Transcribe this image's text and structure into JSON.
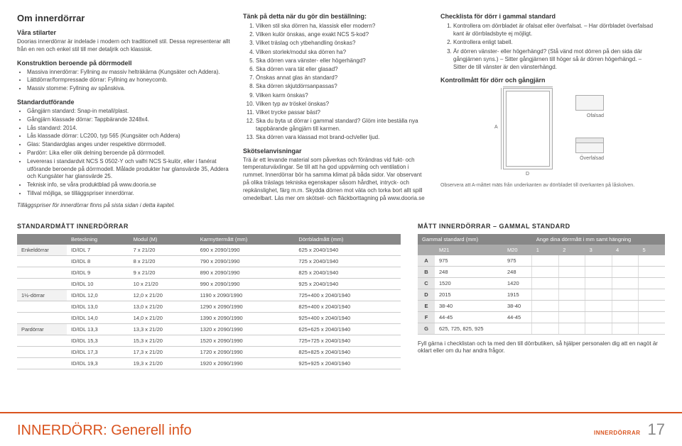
{
  "col1": {
    "heading": "Om innerdörrar",
    "stilarter_title": "Våra stilarter",
    "stilarter_text": "Doorias innerdörrar är indelade i modern och traditionell stil. Dessa representerar allt från en ren och enkel stil till mer detaljrik och klassisk.",
    "konstr_title": "Konstruktion beroende på dörrmodell",
    "konstr_items": [
      "Massiva innerdörrar: Fyllning av massiv helträkärna (Kungsäter och Addera).",
      "Lättdörrar/formpressade dörrar: Fyllning av honeycomb.",
      "Massiv stomme: Fyllning av spånskiva."
    ],
    "standard_title": "Standardutförande",
    "standard_items": [
      "Gångjärn standard: Snap-in metall/plast.",
      "Gångjärn klassade dörrar: Tappbärande 3248x4.",
      "Lås standard: 2014.",
      "Lås klassade dörrar: LC200, typ 565 (Kungsäter och Addera)",
      "Glas: Standardglas anges under respektive dörrmodell.",
      "Pardörr: Lika eller olik delning beroende på dörrmodell.",
      "Levereras i standardvit NCS S 0502-Y och valfri NCS S-kulör, eller i fanérat utförande beroende på dörrmodell. Målade produkter har glansvärde 35, Addera och Kungsäter har glansvärde 25.",
      "Teknisk info, se våra produktblad på www.dooria.se",
      "Tillval möjliga, se tilläggspriser innerdörrar."
    ],
    "tillaggs": "Tilläggspriser för innerdörrar finns på sista sidan i detta kapitel."
  },
  "col2": {
    "heading": "Tänk på detta när du gör din beställning:",
    "items": [
      "Vilken stil ska dörren ha, klassisk eller modern?",
      "Vilken kulör önskas, ange exakt NCS S-kod?",
      "Vilket träslag och ytbehandling önskas?",
      "Vilken storlek/modul ska dörren ha?",
      "Ska dörren vara vänster- eller högerhängd?",
      "Ska dörren vara tät eller glasad?",
      "Önskas annat glas än standard?",
      "Ska dörren skjutdörrsanpassas?",
      "Vilken karm önskas?",
      "Vilken typ av tröskel önskas?",
      "Vilket trycke passar bäst?",
      "Ska du byta ut dörrar i gammal standard? Glöm inte beställa nya tappbärande gångjärn till karmen.",
      "Ska dörren vara klassad mot brand-och/eller ljud."
    ],
    "skotsel_title": "Skötselanvisningar",
    "skotsel_text": "Trä är ett levande material som påverkas och förändras vid fukt- och temperaturväxlingar. Se till att ha god uppvärming och ventilation i rummet. Innerdörrar bör ha samma klimat på båda sidor. Var observant på olika träslags tekniska egenskaper såsom hårdhet, intryck- och repkänslighet, färg m.m. Skydda dörren mot väta och torka bort allt spill omedelbart. Läs mer om skötsel- och fläckborttagning på www.dooria.se"
  },
  "col3": {
    "heading": "Checklista för dörr i gammal standard",
    "items": [
      "Kontrollera om dörrbladet är ofalsat eller överfalsat. – Har dörrbladet överfalsad kant är dörrbladsbyte ej möjligt.",
      "Kontrollera enligt tabell.",
      "Är dörren vänster- eller högerhängd? (Stå vänd mot dörren på den sida där gångjärnen syns.) – Sitter gångjärnen till höger så är dörren högerhängd. – Sitter de till vänster är den vänsterhängd."
    ],
    "kontroll_title": "Kontrollmått för dörr och gångjärn",
    "diag_labels": {
      "ofalsad": "Ofalsad",
      "overfalsad": "Överfalsad"
    },
    "caption": "Observera att A-måttet mäts från underkanten av dörrbladet till överkanten på låskolven.",
    "fillnote": "Fyll gärna i checklistan och ta med den till dörrbutiken, så hjälper personalen dig att en nagöt är oklart eller om du har andra frågor."
  },
  "table1": {
    "title": "STANDARDMÅTT INNERDÖRRAR",
    "headers": [
      "",
      "Beteckning",
      "Modul (M)",
      "Karmyttermått (mm)",
      "Dörrbladmått (mm)"
    ],
    "rows": [
      [
        "Enkeldörrar",
        "ID/IDL 7",
        "7 x 21/20",
        "690 x 2090/1990",
        "625 x 2040/1940"
      ],
      [
        "",
        "ID/IDL 8",
        "8 x 21/20",
        "790 x 2090/1990",
        "725 x 2040/1940"
      ],
      [
        "",
        "ID/IDL 9",
        "9 x 21/20",
        "890 x 2090/1990",
        "825 x 2040/1940"
      ],
      [
        "",
        "ID/IDL 10",
        "10 x 21/20",
        "990 x 2090/1990",
        "925 x 2040/1940"
      ],
      [
        "1½-dörrar",
        "ID/IDL 12,0",
        "12,0 x 21/20",
        "1190 x 2090/1990",
        "725+400 x 2040/1940"
      ],
      [
        "",
        "ID/IDL 13,0",
        "13,0 x 21/20",
        "1290 x 2090/1990",
        "825+400 x 2040/1940"
      ],
      [
        "",
        "ID/IDL 14,0",
        "14,0 x 21/20",
        "1390 x 2090/1990",
        "925+400 x 2040/1940"
      ],
      [
        "Pardörrar",
        "ID/IDL 13,3",
        "13,3 x 21/20",
        "1320 x 2090/1990",
        "625+625 x 2040/1940"
      ],
      [
        "",
        "ID/IDL 15,3",
        "15,3 x 21/20",
        "1520 x 2090/1990",
        "725+725 x 2040/1940"
      ],
      [
        "",
        "ID/IDL 17,3",
        "17,3 x 21/20",
        "1720 x 2090/1990",
        "825+825 x 2040/1940"
      ],
      [
        "",
        "ID/IDL 19,3",
        "19,3 x 21/20",
        "1920 x 2090/1990",
        "925+925 x 2040/1940"
      ]
    ]
  },
  "table2": {
    "title": "MÅTT INNERDÖRRAR – GAMMAL STANDARD",
    "headers": [
      "Gammal standard (mm)",
      "Ange dina dörrmått i mm samt hängning"
    ],
    "sub": [
      "",
      "M21",
      "M20",
      "1",
      "2",
      "3",
      "4",
      "5"
    ],
    "rows": [
      [
        "A",
        "975",
        "975",
        "",
        "",
        "",
        "",
        ""
      ],
      [
        "B",
        "248",
        "248",
        "",
        "",
        "",
        "",
        ""
      ],
      [
        "C",
        "1520",
        "1420",
        "",
        "",
        "",
        "",
        ""
      ],
      [
        "D",
        "2015",
        "1915",
        "",
        "",
        "",
        "",
        ""
      ],
      [
        "E",
        "38-40",
        "38-40",
        "",
        "",
        "",
        "",
        ""
      ],
      [
        "F",
        "44-45",
        "44-45",
        "",
        "",
        "",
        "",
        ""
      ],
      [
        "G",
        "625, 725, 825, 925",
        "",
        "",
        "",
        "",
        "",
        ""
      ]
    ]
  },
  "footer": {
    "title": "INNERDÖRR: Generell info",
    "cat": "INNERDÖRRAR",
    "page": "17"
  }
}
